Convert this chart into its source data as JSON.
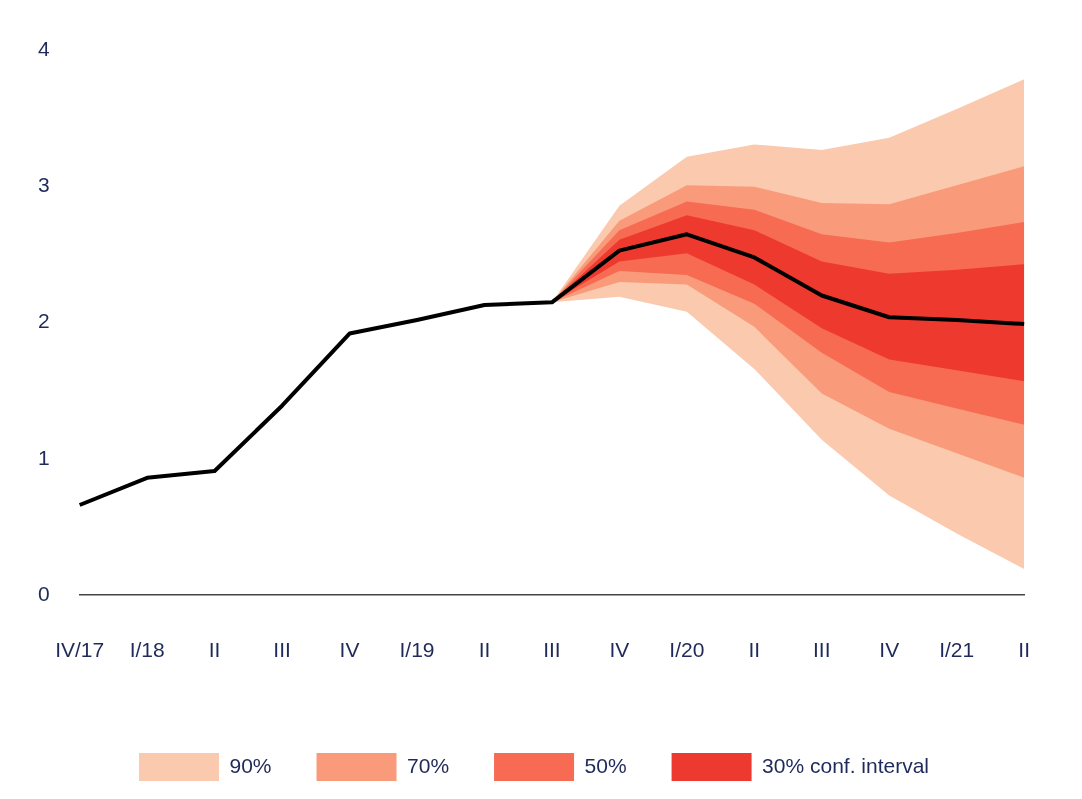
{
  "chart_data": {
    "type": "line",
    "categories": [
      "IV/17",
      "I/18",
      "II",
      "III",
      "IV",
      "I/19",
      "II",
      "III",
      "IV",
      "I/20",
      "II",
      "III",
      "IV",
      "I/21",
      "II"
    ],
    "ylim": [
      0,
      4
    ],
    "yticks": [
      0,
      1,
      2,
      3,
      4
    ],
    "legend": "bottom",
    "marker": "none",
    "series": [
      {
        "type": "line",
        "color": "#000000",
        "values": [
          0.66,
          0.86,
          0.91,
          1.39,
          1.92,
          2.02,
          2.13,
          2.15,
          2.53,
          2.65,
          2.48,
          2.2,
          2.04,
          2.02,
          1.99
        ]
      },
      {
        "type": "line",
        "name": "90%",
        "color": "#fbc9ae",
        "values": [
          null,
          null,
          null,
          null,
          null,
          null,
          null,
          null,
          null,
          null,
          null,
          null,
          null,
          null,
          null
        ],
        "lower": [
          null,
          null,
          null,
          null,
          null,
          null,
          null,
          2.15,
          2.19,
          2.08,
          1.66,
          1.14,
          0.73,
          0.45,
          0.19
        ],
        "upper": [
          null,
          null,
          null,
          null,
          null,
          null,
          null,
          2.15,
          2.86,
          3.22,
          3.31,
          3.27,
          3.36,
          3.57,
          3.79
        ]
      },
      {
        "type": "line",
        "name": "70%",
        "color": "#f99b7b",
        "values": [
          null,
          null,
          null,
          null,
          null,
          null,
          null,
          null,
          null,
          null,
          null,
          null,
          null,
          null,
          null
        ],
        "lower": [
          null,
          null,
          null,
          null,
          null,
          null,
          null,
          2.15,
          2.3,
          2.28,
          1.97,
          1.48,
          1.22,
          1.04,
          0.86
        ],
        "upper": [
          null,
          null,
          null,
          null,
          null,
          null,
          null,
          2.15,
          2.75,
          3.01,
          3.0,
          2.88,
          2.87,
          3.01,
          3.15
        ]
      },
      {
        "type": "line",
        "name": "50%",
        "color": "#f76b52",
        "values": [
          null,
          null,
          null,
          null,
          null,
          null,
          null,
          null,
          null,
          null,
          null,
          null,
          null,
          null,
          null
        ],
        "lower": [
          null,
          null,
          null,
          null,
          null,
          null,
          null,
          2.15,
          2.38,
          2.35,
          2.14,
          1.78,
          1.49,
          1.37,
          1.25
        ],
        "upper": [
          null,
          null,
          null,
          null,
          null,
          null,
          null,
          2.15,
          2.68,
          2.89,
          2.83,
          2.65,
          2.59,
          2.66,
          2.74
        ]
      },
      {
        "type": "line",
        "name": "30% conf. interval",
        "color": "#ee3a2e",
        "values": [
          null,
          null,
          null,
          null,
          null,
          null,
          null,
          null,
          null,
          null,
          null,
          null,
          null,
          null,
          null
        ],
        "lower": [
          null,
          null,
          null,
          null,
          null,
          null,
          null,
          2.15,
          2.45,
          2.51,
          2.28,
          1.96,
          1.73,
          1.65,
          1.57
        ],
        "upper": [
          null,
          null,
          null,
          null,
          null,
          null,
          null,
          2.15,
          2.61,
          2.79,
          2.68,
          2.45,
          2.36,
          2.39,
          2.43
        ]
      }
    ]
  }
}
